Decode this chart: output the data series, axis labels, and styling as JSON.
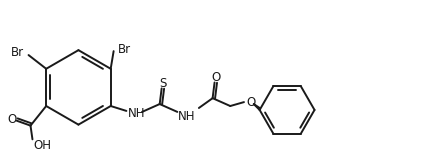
{
  "bg_color": "#ffffff",
  "line_color": "#1a1a1a",
  "line_width": 1.4,
  "font_size": 8.5,
  "figsize": [
    4.34,
    1.58
  ],
  "dpi": 100
}
